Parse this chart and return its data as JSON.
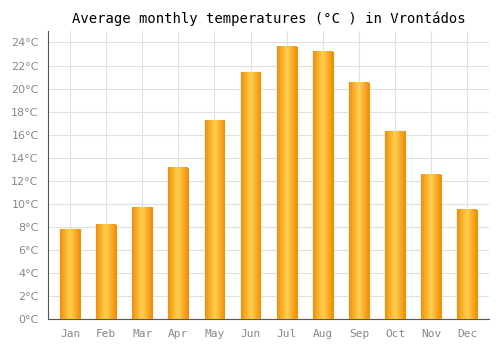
{
  "title": "Average monthly temperatures (°C ) in Vrontádos",
  "months": [
    "Jan",
    "Feb",
    "Mar",
    "Apr",
    "May",
    "Jun",
    "Jul",
    "Aug",
    "Sep",
    "Oct",
    "Nov",
    "Dec"
  ],
  "values": [
    7.8,
    8.2,
    9.7,
    13.1,
    17.2,
    21.4,
    23.6,
    23.2,
    20.5,
    16.3,
    12.5,
    9.5
  ],
  "bar_color_center": "#FFD050",
  "bar_color_edge": "#F0900A",
  "background_color": "#FFFFFF",
  "grid_color": "#E0E0E0",
  "ylim": [
    0,
    25
  ],
  "ytick_step": 2,
  "title_fontsize": 10,
  "tick_fontsize": 8,
  "bar_width": 0.55
}
